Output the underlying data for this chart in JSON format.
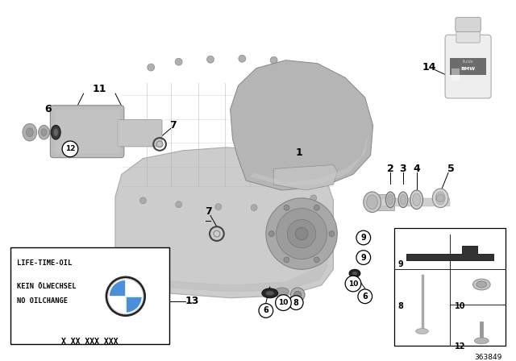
{
  "bg_color": "#ffffff",
  "label_box_text": [
    "LIFE-TIME-OIL",
    "KEIN ÖLWECHSEL",
    "NO OILCHANGE",
    "X XX XXX XXX"
  ],
  "diagram_number": "363849",
  "housing_color": "#d0d0d0",
  "housing_edge": "#999999",
  "diff_color": "#b8b8b8",
  "diff_edge": "#888888",
  "shaft_color": "#c0c0c0",
  "shaft_edge": "#909090",
  "seal_dark": "#303030",
  "seal_mid": "#888888",
  "bottle_body": "#ececec",
  "bottle_neck": "#d8d8d8",
  "bottle_label": "#444444",
  "black": "#000000",
  "white": "#ffffff",
  "bmw_blue": "#4a90d9",
  "bmw_dark": "#111111",
  "line_color": "#000000",
  "circle_bg": "#ffffff",
  "circle_edge": "#000000"
}
